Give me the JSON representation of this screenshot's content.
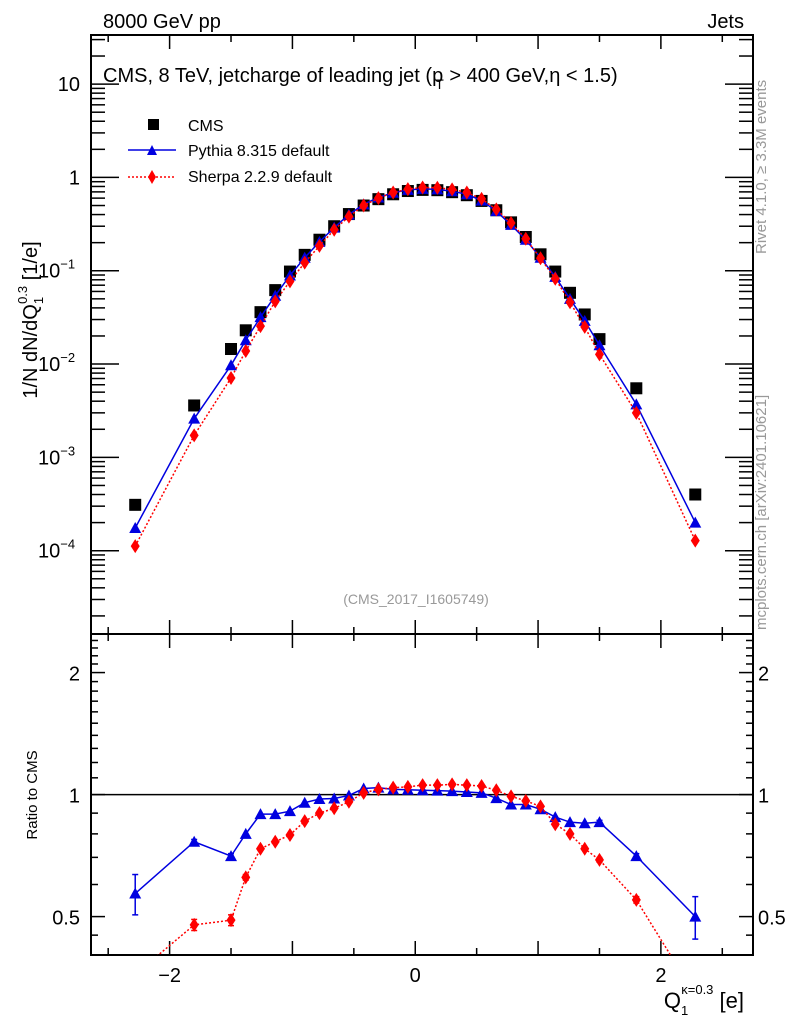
{
  "header": {
    "left": "8000 GeV pp",
    "right": "Jets"
  },
  "side_labels": {
    "rivet": "Rivet 4.1.0, ≥ 3.3M events",
    "mcplots": "mcplots.cern.ch [arXiv:2401.10621]"
  },
  "colors": {
    "cms": "#000000",
    "pythia": "#0000e0",
    "sherpa": "#ff0000",
    "watermark": "#999999"
  },
  "chart_data": [
    {
      "type": "scatter",
      "panel": "main",
      "title": "CMS, 8 TeV, jetcharge of leading jet (p_T > 400 GeV, η < 1.5)",
      "title_parts": {
        "before": "CMS, 8 TeV, jetcharge of leading jet (p",
        "sub": "T",
        "after": " > 400 GeV,η < 1.5)"
      },
      "watermark": "(CMS_2017_I1605749)",
      "xlabel": "Q_1^{κ=0.3} [e]",
      "ylabel": "1/N dN/dQ_1^{0.3} [1/e]",
      "ylabel_parts": {
        "main": "1/N dN/dQ",
        "sub": "1",
        "sup": "0.3",
        "unit": " [1/e]"
      },
      "yscale": "log",
      "xlim": [
        -2.64,
        2.75
      ],
      "ylim": [
        1.28e-05,
        33.6
      ],
      "yticks": [
        {
          "value": 10,
          "label": "10"
        },
        {
          "value": 1,
          "label": "1"
        },
        {
          "value": 0.1,
          "label": "10",
          "exp": "−1"
        },
        {
          "value": 0.01,
          "label": "10",
          "exp": "−2"
        },
        {
          "value": 0.001,
          "label": "10",
          "exp": "−3"
        },
        {
          "value": 0.0001,
          "label": "10",
          "exp": "−4"
        }
      ],
      "legend_position": "top-left",
      "x": [
        -2.28,
        -1.8,
        -1.5,
        -1.38,
        -1.26,
        -1.14,
        -1.02,
        -0.9,
        -0.78,
        -0.66,
        -0.54,
        -0.42,
        -0.3,
        -0.18,
        -0.06,
        0.06,
        0.18,
        0.3,
        0.42,
        0.54,
        0.66,
        0.78,
        0.9,
        1.02,
        1.14,
        1.26,
        1.38,
        1.5,
        1.8,
        2.28
      ],
      "series": [
        {
          "name": "CMS",
          "marker": "square",
          "values": [
            0.00031,
            0.0036,
            0.0145,
            0.023,
            0.036,
            0.062,
            0.098,
            0.148,
            0.215,
            0.3,
            0.405,
            0.5,
            0.585,
            0.66,
            0.715,
            0.735,
            0.73,
            0.695,
            0.645,
            0.56,
            0.445,
            0.33,
            0.23,
            0.15,
            0.098,
            0.058,
            0.034,
            0.0185,
            0.0055,
            0.0004
          ]
        },
        {
          "name": "Pythia 8.315 default",
          "marker": "triangle",
          "line": "solid",
          "values": [
            0.000175,
            0.0026,
            0.0097,
            0.018,
            0.0318,
            0.054,
            0.089,
            0.138,
            0.204,
            0.29,
            0.4,
            0.515,
            0.61,
            0.685,
            0.735,
            0.755,
            0.745,
            0.71,
            0.66,
            0.565,
            0.435,
            0.31,
            0.215,
            0.138,
            0.086,
            0.05,
            0.029,
            0.0159,
            0.0037,
            0.0002
          ]
        },
        {
          "name": "Sherpa 2.2.9 default",
          "marker": "diamond",
          "line": "dotted",
          "values": [
            0.000112,
            0.00172,
            0.0071,
            0.0138,
            0.0255,
            0.047,
            0.077,
            0.122,
            0.185,
            0.275,
            0.38,
            0.5,
            0.6,
            0.69,
            0.75,
            0.78,
            0.775,
            0.745,
            0.69,
            0.59,
            0.455,
            0.325,
            0.22,
            0.136,
            0.082,
            0.046,
            0.025,
            0.0127,
            0.003,
            0.000128
          ]
        }
      ]
    },
    {
      "type": "line",
      "panel": "ratio",
      "ylabel": "Ratio to CMS",
      "xlabel": "Q_1^{κ=0.3} [e]",
      "xlabel_parts": {
        "main": "Q",
        "sub": "1",
        "sup": "κ=0.3",
        "unit": " [e]"
      },
      "yscale": "log",
      "xlim": [
        -2.64,
        2.75
      ],
      "ylim": [
        0.402,
        2.49
      ],
      "yticks": [
        {
          "value": 2,
          "label": "2"
        },
        {
          "value": 1,
          "label": "1"
        },
        {
          "value": 0.5,
          "label": "0.5"
        }
      ],
      "xticks": [
        {
          "value": -2,
          "label": "−2"
        },
        {
          "value": 0,
          "label": "0"
        },
        {
          "value": 2,
          "label": "2"
        }
      ],
      "reference_line": 1,
      "x": [
        -2.28,
        -1.8,
        -1.5,
        -1.38,
        -1.26,
        -1.14,
        -1.02,
        -0.9,
        -0.78,
        -0.66,
        -0.54,
        -0.42,
        -0.3,
        -0.18,
        -0.06,
        0.06,
        0.18,
        0.3,
        0.42,
        0.54,
        0.66,
        0.78,
        0.9,
        1.02,
        1.14,
        1.26,
        1.38,
        1.5,
        1.8,
        2.28
      ],
      "series": [
        {
          "name": "Pythia 8.315 default",
          "marker": "triangle",
          "line": "solid",
          "values": [
            0.57,
            0.765,
            0.705,
            0.8,
            0.895,
            0.895,
            0.91,
            0.955,
            0.975,
            0.978,
            0.995,
            1.035,
            1.04,
            1.03,
            1.028,
            1.025,
            1.023,
            1.02,
            1.015,
            1.01,
            0.98,
            0.945,
            0.945,
            0.92,
            0.88,
            0.855,
            0.85,
            0.855,
            0.705,
            0.5
          ],
          "errors": [
            0.065,
            0.01,
            0.01,
            0.008,
            0.006,
            0.006,
            0.005,
            0.004,
            0.004,
            0.003,
            0.003,
            0.003,
            0.003,
            0.003,
            0.003,
            0.003,
            0.003,
            0.003,
            0.003,
            0.003,
            0.003,
            0.004,
            0.004,
            0.005,
            0.006,
            0.007,
            0.008,
            0.009,
            0.01,
            0.06
          ]
        },
        {
          "name": "Sherpa 2.2.9 default",
          "marker": "diamond",
          "line": "dotted",
          "values": [
            0.36,
            0.477,
            0.49,
            0.625,
            0.735,
            0.765,
            0.795,
            0.86,
            0.9,
            0.925,
            0.96,
            1.01,
            1.03,
            1.04,
            1.045,
            1.055,
            1.055,
            1.06,
            1.055,
            1.05,
            1.025,
            0.99,
            0.965,
            0.935,
            0.845,
            0.8,
            0.735,
            0.69,
            0.55,
            0.32
          ],
          "errors": [
            0.02,
            0.015,
            0.015,
            0.01,
            0.008,
            0.007,
            0.006,
            0.005,
            0.004,
            0.004,
            0.003,
            0.003,
            0.003,
            0.003,
            0.003,
            0.003,
            0.003,
            0.003,
            0.003,
            0.003,
            0.003,
            0.004,
            0.004,
            0.005,
            0.006,
            0.007,
            0.008,
            0.009,
            0.01,
            0.02
          ]
        }
      ]
    }
  ]
}
